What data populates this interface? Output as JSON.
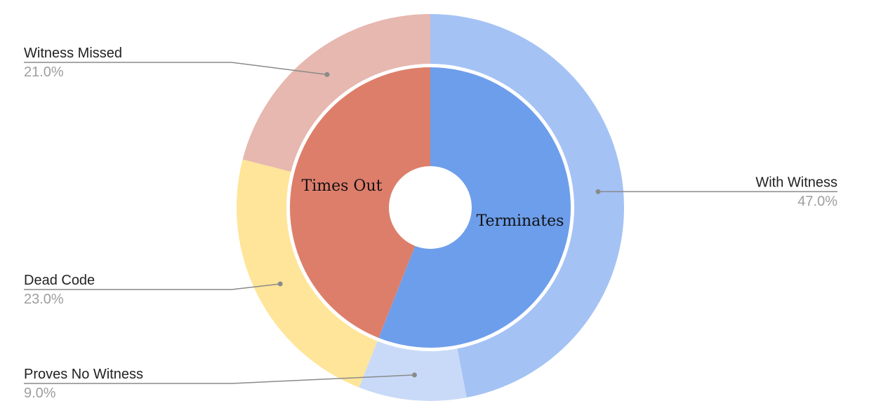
{
  "chart_data": {
    "type": "pie",
    "variant": "nested-donut",
    "outer_ring": [
      {
        "label": "With Witness",
        "value": 47.0,
        "display": "47.0%",
        "color": "#a4c2f4",
        "label_side": "right"
      },
      {
        "label": "Proves No Witness",
        "value": 9.0,
        "display": "9.0%",
        "color": "#c9daf8",
        "label_side": "left"
      },
      {
        "label": "Dead Code",
        "value": 23.0,
        "display": "23.0%",
        "color": "#ffe599",
        "label_side": "left"
      },
      {
        "label": "Witness Missed",
        "value": 21.0,
        "display": "21.0%",
        "color": "#e6b8af",
        "label_side": "left"
      }
    ],
    "inner_ring": [
      {
        "label": "Terminates",
        "value": 56.0,
        "color": "#6d9eeb"
      },
      {
        "label": "Times Out",
        "value": 44.0,
        "color": "#dd7e6b"
      }
    ],
    "start_angle_deg": 0,
    "direction": "clockwise"
  }
}
